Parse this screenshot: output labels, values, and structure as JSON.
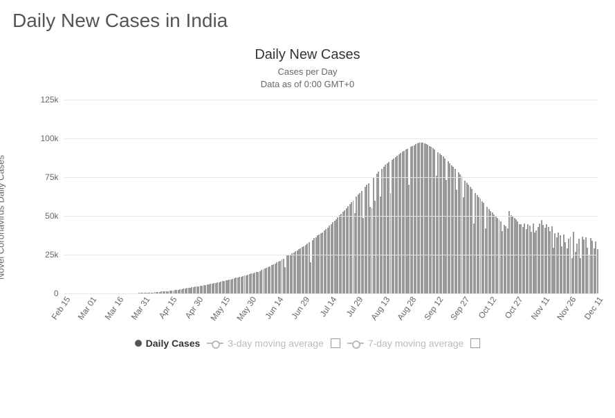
{
  "page": {
    "title": "Daily New Cases in India"
  },
  "chart": {
    "type": "bar",
    "title": "Daily New Cases",
    "subtitle_line1": "Cases per Day",
    "subtitle_line2": "Data as of 0:00 GMT+0",
    "y_axis": {
      "label": "Novel Coronavirus Daily Cases",
      "min": 0,
      "max": 125000,
      "ticks": [
        {
          "value": 0,
          "label": "0"
        },
        {
          "value": 25000,
          "label": "25k"
        },
        {
          "value": 50000,
          "label": "50k"
        },
        {
          "value": 75000,
          "label": "75k"
        },
        {
          "value": 100000,
          "label": "100k"
        },
        {
          "value": 125000,
          "label": "125k"
        }
      ]
    },
    "x_axis": {
      "ticks": [
        "Feb 15",
        "Mar 01",
        "Mar 16",
        "Mar 31",
        "Apr 15",
        "Apr 30",
        "May 15",
        "May 30",
        "Jun 14",
        "Jun 29",
        "Jul 14",
        "Jul 29",
        "Aug 13",
        "Aug 28",
        "Sep 12",
        "Sep 27",
        "Oct 12",
        "Oct 27",
        "Nov 11",
        "Nov 26",
        "Dec 11"
      ]
    },
    "colors": {
      "bar": "#999999",
      "grid": "#e6e6e6",
      "background": "#ffffff",
      "axis_text": "#666666",
      "title_text": "#333333",
      "legend_active": "#555555",
      "legend_inactive": "#bbbbbb"
    },
    "values": [
      0,
      0,
      0,
      0,
      0,
      0,
      0,
      0,
      0,
      0,
      0,
      0,
      0,
      0,
      0,
      0,
      0,
      0,
      0,
      0,
      0,
      0,
      0,
      0,
      0,
      0,
      0,
      0,
      0,
      0,
      50,
      60,
      80,
      100,
      120,
      130,
      150,
      160,
      170,
      180,
      200,
      220,
      240,
      260,
      280,
      300,
      350,
      400,
      500,
      550,
      600,
      650,
      700,
      800,
      900,
      1000,
      1100,
      1200,
      1250,
      1300,
      1400,
      1500,
      1700,
      1800,
      1900,
      2100,
      2300,
      2400,
      2600,
      2800,
      3000,
      3200,
      3400,
      3600,
      3800,
      3900,
      4100,
      4300,
      4400,
      4600,
      4800,
      5000,
      5300,
      5500,
      5800,
      6000,
      6300,
      6500,
      6700,
      6900,
      7200,
      7400,
      7700,
      7900,
      8200,
      8400,
      8700,
      8900,
      9200,
      9500,
      9900,
      10200,
      10400,
      10700,
      10900,
      11200,
      11500,
      11800,
      12100,
      12500,
      12800,
      13200,
      13400,
      13700,
      14100,
      14500,
      15100,
      15600,
      16200,
      16700,
      17100,
      17600,
      18200,
      18800,
      19400,
      20000,
      20600,
      21200,
      21800,
      22500,
      16900,
      24400,
      24600,
      25100,
      26000,
      26600,
      27200,
      27800,
      28500,
      29200,
      30000,
      30600,
      31200,
      32000,
      33000,
      20000,
      34500,
      35600,
      36200,
      37500,
      38100,
      38800,
      39500,
      40500,
      41500,
      42500,
      43600,
      44700,
      46000,
      47000,
      48000,
      49100,
      50300,
      51500,
      52800,
      53800,
      55000,
      56200,
      57500,
      58800,
      60000,
      52000,
      62400,
      63700,
      65000,
      66200,
      48500,
      68800,
      70000,
      71200,
      56000,
      55000,
      75000,
      60000,
      77200,
      78400,
      62500,
      80500,
      81700,
      82900,
      83800,
      84700,
      65000,
      86200,
      87000,
      88000,
      88800,
      89700,
      90500,
      91400,
      92100,
      92800,
      93500,
      70000,
      94700,
      95200,
      95800,
      96300,
      96800,
      97200,
      97500,
      97300,
      97000,
      96400,
      95900,
      95300,
      94600,
      93800,
      93000,
      76000,
      91300,
      90400,
      89400,
      88400,
      87300,
      73200,
      85100,
      83900,
      82800,
      81600,
      80400,
      67200,
      78000,
      76800,
      75500,
      62300,
      73000,
      71600,
      70300,
      69000,
      67600,
      45000,
      65000,
      63600,
      62300,
      61000,
      59600,
      58400,
      42100,
      55800,
      54500,
      53300,
      52100,
      50900,
      49700,
      48600,
      47400,
      46400,
      40300,
      44200,
      43300,
      42200,
      53200,
      50300,
      49400,
      48500,
      47600,
      46700,
      44800,
      44900,
      43100,
      45200,
      41400,
      44600,
      43800,
      40000,
      45200,
      39400,
      40600,
      42800,
      45000,
      47200,
      44400,
      42600,
      44800,
      43000,
      40200,
      43400,
      29600,
      38800,
      36000,
      39200,
      37400,
      30600,
      37800,
      33000,
      29200,
      35400,
      36600,
      22800,
      40000,
      27000,
      32200,
      35400,
      22600,
      36800,
      35000,
      36200,
      29400,
      25000,
      35800,
      34000,
      29200,
      33400,
      28600
    ],
    "legend": {
      "items": [
        {
          "label": "Daily Cases",
          "type": "dot",
          "color": "#555555",
          "active": true,
          "has_checkbox": false
        },
        {
          "label": "3-day moving average",
          "type": "line",
          "color": "#bbbbbb",
          "active": false,
          "has_checkbox": true
        },
        {
          "label": "7-day moving average",
          "type": "line",
          "color": "#bbbbbb",
          "active": false,
          "has_checkbox": true
        }
      ]
    }
  }
}
